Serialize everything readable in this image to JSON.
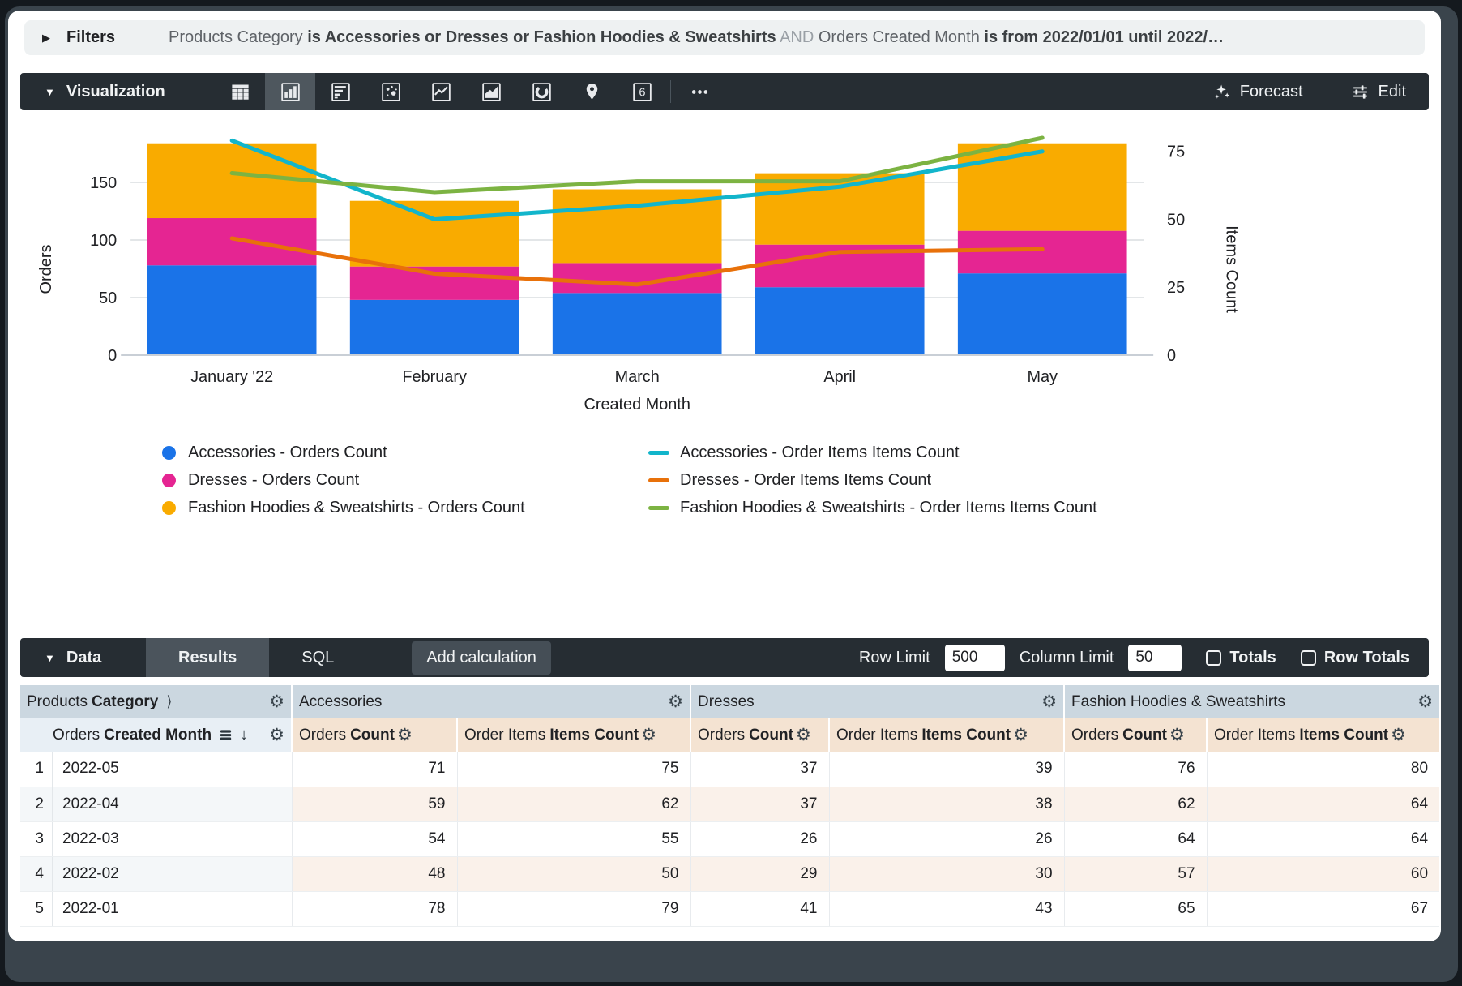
{
  "filters_bar": {
    "label": "Filters",
    "summary_segments": [
      {
        "text": "Products Category ",
        "style": "normal"
      },
      {
        "text": "is Accessories or Dresses or Fashion Hoodies & Sweatshirts",
        "style": "bold"
      },
      {
        "text": " AND ",
        "style": "muted"
      },
      {
        "text": "Orders Created Month ",
        "style": "normal"
      },
      {
        "text": "is from 2022/01/01 until 2022/…",
        "style": "bold"
      }
    ]
  },
  "viz_bar": {
    "title": "Visualization",
    "viz_types": [
      "table",
      "column",
      "bar",
      "scatter",
      "line",
      "area",
      "pie",
      "map",
      "single-value",
      "more"
    ],
    "selected_viz_type": "column",
    "single_value_glyph": "6",
    "forecast_label": "Forecast",
    "edit_label": "Edit"
  },
  "chart_data": {
    "type": "combo-stacked-bar-and-line",
    "categories": [
      "January '22",
      "February",
      "March",
      "April",
      "May"
    ],
    "bar_series": [
      {
        "name": "Accessories - Orders Count",
        "color": "#1A73E8",
        "values": [
          78,
          48,
          54,
          59,
          71
        ]
      },
      {
        "name": "Dresses - Orders Count",
        "color": "#E52592",
        "values": [
          41,
          29,
          26,
          37,
          37
        ]
      },
      {
        "name": "Fashion Hoodies & Sweatshirts - Orders Count",
        "color": "#F9AB00",
        "values": [
          65,
          57,
          64,
          62,
          76
        ]
      }
    ],
    "line_series": [
      {
        "name": "Accessories - Order Items Items Count",
        "color": "#12B5CB",
        "values": [
          79,
          50,
          55,
          62,
          75
        ]
      },
      {
        "name": "Dresses - Order Items Items Count",
        "color": "#E8710A",
        "values": [
          43,
          30,
          26,
          38,
          39
        ]
      },
      {
        "name": "Fashion Hoodies & Sweatshirts - Order Items Items Count",
        "color": "#7CB342",
        "values": [
          67,
          60,
          64,
          64,
          80
        ]
      }
    ],
    "left_axis": {
      "label": "Orders",
      "ticks": [
        0,
        50,
        100,
        150
      ],
      "max": 200
    },
    "right_axis": {
      "label": "Items Count",
      "ticks": [
        0,
        25,
        50,
        75
      ],
      "max": 90
    },
    "xlabel": "Created Month",
    "grid": "horizontal-only",
    "legend_position": "bottom"
  },
  "data_bar": {
    "title": "Data",
    "tabs": [
      {
        "label": "Results",
        "selected": true
      },
      {
        "label": "SQL",
        "selected": false
      }
    ],
    "add_calculation_label": "Add calculation",
    "row_limit_label": "Row Limit",
    "row_limit_value": "500",
    "column_limit_label": "Column Limit",
    "column_limit_value": "50",
    "totals_label": "Totals",
    "row_totals_label": "Row Totals",
    "totals_checked": false,
    "row_totals_checked": false
  },
  "table": {
    "group_headers": [
      {
        "prefix": "Products",
        "bold": "Category",
        "chevron": "⟩"
      },
      {
        "label": "Accessories"
      },
      {
        "label": "Dresses"
      },
      {
        "label": "Fashion Hoodies & Sweatshirts"
      }
    ],
    "column_headers": {
      "dimension": {
        "prefix": "Orders",
        "bold": "Created Month"
      },
      "measures": [
        {
          "prefix": "Orders",
          "bold": "Count"
        },
        {
          "prefix": "Order Items",
          "bold": "Items Count"
        }
      ]
    },
    "rows": [
      {
        "index": "1",
        "dimension": "2022-05",
        "values": [
          "71",
          "75",
          "37",
          "39",
          "76",
          "80"
        ]
      },
      {
        "index": "2",
        "dimension": "2022-04",
        "values": [
          "59",
          "62",
          "37",
          "38",
          "62",
          "64"
        ]
      },
      {
        "index": "3",
        "dimension": "2022-03",
        "values": [
          "54",
          "55",
          "26",
          "26",
          "64",
          "64"
        ]
      },
      {
        "index": "4",
        "dimension": "2022-02",
        "values": [
          "48",
          "50",
          "29",
          "30",
          "57",
          "60"
        ]
      },
      {
        "index": "5",
        "dimension": "2022-01",
        "values": [
          "78",
          "79",
          "41",
          "43",
          "65",
          "67"
        ]
      }
    ]
  },
  "colors": {
    "toolbar_dark": "#262d33",
    "toolbar_selected": "#4e575e",
    "group_header_bg": "#cbd7e0",
    "dim_header_bg": "#e8eff5",
    "measure_header_bg": "#f4e3d2",
    "accent_blue": "#1A73E8",
    "accent_magenta": "#E52592",
    "accent_orange": "#F9AB00",
    "accent_cyan": "#12B5CB",
    "accent_dark_orange": "#E8710A",
    "accent_green": "#7CB342"
  }
}
